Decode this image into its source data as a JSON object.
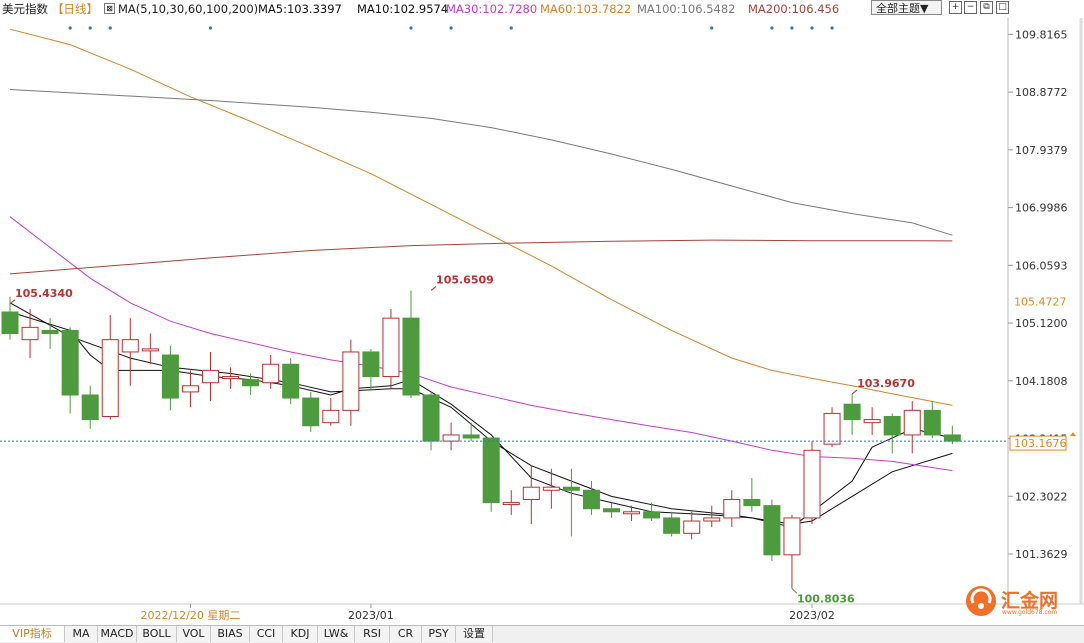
{
  "header": {
    "instrument": "美元指数",
    "period": "【日线】",
    "ma_params": "MA(5,10,30,60,100,200)",
    "ma5": "MA5:103.3397",
    "ma10": "MA10:102.9574",
    "ma30": "MA30:102.7280",
    "ma60": "MA60:103.7822",
    "ma100": "MA100:106.5482",
    "ma200": "MA200:106.456",
    "theme_dropdown": "全部主题▼"
  },
  "colors": {
    "up": "#b83232",
    "down": "#4e9a3e",
    "ma5": "#111111",
    "ma10": "#111111",
    "ma30": "#c83ccc",
    "ma60": "#d9822b",
    "ma100": "#7a7a7a",
    "ma200": "#a5443a",
    "crosshair": "#2a7ab8",
    "price_orange": "#e08a1e"
  },
  "chart_data": {
    "type": "candlestick",
    "ylim": [
      100.55,
      110.05
    ],
    "y_ticks": [
      "109.8165",
      "108.8772",
      "107.9379",
      "106.9986",
      "106.0593",
      "105.1200",
      "104.1808",
      "103.2415",
      "102.3022",
      "101.3629"
    ],
    "x_labels": [
      {
        "label": "2022/12/20 星期二",
        "index": 9
      },
      {
        "label": "2023/01",
        "index": 18
      },
      {
        "label": "2023/02",
        "index": 40
      }
    ],
    "candles": [
      [
        105.3,
        104.95,
        105.55,
        104.85
      ],
      [
        104.85,
        105.05,
        105.35,
        104.55
      ],
      [
        105.0,
        104.95,
        105.2,
        104.7
      ],
      [
        105.0,
        103.95,
        105.05,
        103.65
      ],
      [
        103.95,
        103.55,
        104.1,
        103.4
      ],
      [
        103.6,
        104.85,
        105.25,
        103.55
      ],
      [
        104.65,
        104.85,
        105.2,
        104.1
      ],
      [
        104.7,
        104.7,
        104.95,
        104.45
      ],
      [
        104.6,
        103.9,
        104.75,
        103.7
      ],
      [
        104.0,
        104.1,
        104.35,
        103.75
      ],
      [
        104.15,
        104.35,
        104.65,
        103.85
      ],
      [
        104.25,
        104.25,
        104.4,
        104.05
      ],
      [
        104.2,
        104.1,
        104.3,
        103.95
      ],
      [
        104.15,
        104.45,
        104.6,
        104.05
      ],
      [
        104.45,
        103.9,
        104.55,
        103.8
      ],
      [
        103.9,
        103.45,
        104.0,
        103.35
      ],
      [
        103.5,
        103.7,
        103.9,
        103.45
      ],
      [
        103.7,
        104.65,
        104.85,
        103.45
      ],
      [
        104.65,
        104.25,
        104.7,
        104.05
      ],
      [
        104.25,
        105.2,
        105.35,
        104.05
      ],
      [
        105.2,
        103.95,
        105.65,
        103.9
      ],
      [
        103.95,
        103.2,
        104.0,
        103.05
      ],
      [
        103.2,
        103.3,
        103.5,
        103.05
      ],
      [
        103.3,
        103.25,
        103.5,
        103.2
      ],
      [
        103.25,
        102.2,
        103.25,
        102.05
      ],
      [
        102.2,
        102.2,
        102.4,
        102.0
      ],
      [
        102.25,
        102.45,
        102.8,
        101.85
      ],
      [
        102.4,
        102.45,
        102.75,
        102.1
      ],
      [
        102.45,
        102.4,
        102.75,
        101.65
      ],
      [
        102.4,
        102.1,
        102.55,
        102.0
      ],
      [
        102.1,
        102.05,
        102.2,
        101.95
      ],
      [
        102.05,
        102.05,
        102.15,
        101.9
      ],
      [
        102.05,
        101.95,
        102.2,
        101.9
      ],
      [
        101.95,
        101.7,
        102.05,
        101.65
      ],
      [
        101.7,
        101.9,
        102.05,
        101.6
      ],
      [
        101.9,
        101.95,
        102.15,
        101.8
      ],
      [
        101.95,
        102.25,
        102.4,
        101.8
      ],
      [
        102.25,
        102.15,
        102.6,
        102.05
      ],
      [
        102.15,
        101.35,
        102.25,
        101.25
      ],
      [
        101.35,
        101.95,
        102.0,
        100.8036
      ],
      [
        101.95,
        103.05,
        103.2,
        101.85
      ],
      [
        103.15,
        103.65,
        103.75,
        103.1
      ],
      [
        103.8,
        103.55,
        103.967,
        103.3
      ],
      [
        103.5,
        103.55,
        103.75,
        103.3
      ],
      [
        103.6,
        103.3,
        103.65,
        103.0
      ],
      [
        103.3,
        103.7,
        103.85,
        103.0
      ],
      [
        103.7,
        103.3,
        103.85,
        103.25
      ],
      [
        103.3,
        103.2,
        103.45,
        103.15
      ]
    ],
    "series": [
      {
        "name": "MA5",
        "values": [
          [
            0,
            105.3
          ],
          [
            3,
            105.0
          ],
          [
            4,
            104.6
          ],
          [
            5,
            104.35
          ],
          [
            8,
            104.35
          ],
          [
            10,
            104.25
          ],
          [
            12,
            104.2
          ],
          [
            14,
            104.1
          ],
          [
            16,
            103.95
          ],
          [
            17,
            104.05
          ],
          [
            19,
            104.1
          ],
          [
            20,
            104.2
          ],
          [
            22,
            103.8
          ],
          [
            24,
            103.3
          ],
          [
            26,
            102.6
          ],
          [
            28,
            102.35
          ],
          [
            30,
            102.2
          ],
          [
            32,
            102.05
          ],
          [
            35,
            102.0
          ],
          [
            37,
            101.95
          ],
          [
            39,
            101.8
          ],
          [
            40,
            102.05
          ],
          [
            42,
            102.55
          ],
          [
            43,
            103.1
          ],
          [
            45,
            103.4
          ],
          [
            47,
            103.25
          ]
        ]
      },
      {
        "name": "MA10",
        "values": [
          [
            0,
            105.45
          ],
          [
            3,
            104.9
          ],
          [
            6,
            104.55
          ],
          [
            8,
            104.4
          ],
          [
            11,
            104.3
          ],
          [
            14,
            104.15
          ],
          [
            16,
            104.0
          ],
          [
            19,
            104.05
          ],
          [
            20,
            104.05
          ],
          [
            22,
            103.75
          ],
          [
            24,
            103.2
          ],
          [
            26,
            102.8
          ],
          [
            28,
            102.55
          ],
          [
            30,
            102.3
          ],
          [
            33,
            102.1
          ],
          [
            36,
            102.0
          ],
          [
            39,
            101.85
          ],
          [
            40,
            101.9
          ],
          [
            42,
            102.3
          ],
          [
            44,
            102.7
          ],
          [
            47,
            103.0
          ]
        ]
      },
      {
        "name": "MA30",
        "values": [
          [
            0,
            106.85
          ],
          [
            2,
            106.35
          ],
          [
            4,
            105.85
          ],
          [
            6,
            105.45
          ],
          [
            8,
            105.15
          ],
          [
            10,
            104.95
          ],
          [
            12,
            104.8
          ],
          [
            14,
            104.65
          ],
          [
            16,
            104.52
          ],
          [
            18,
            104.42
          ],
          [
            20,
            104.3
          ],
          [
            22,
            104.08
          ],
          [
            24,
            103.93
          ],
          [
            26,
            103.78
          ],
          [
            28,
            103.66
          ],
          [
            30,
            103.55
          ],
          [
            32,
            103.44
          ],
          [
            34,
            103.34
          ],
          [
            36,
            103.2
          ],
          [
            38,
            103.05
          ],
          [
            40,
            102.95
          ],
          [
            42,
            102.92
          ],
          [
            44,
            102.87
          ],
          [
            47,
            102.72
          ]
        ]
      },
      {
        "name": "MA60",
        "values": [
          [
            0,
            109.9
          ],
          [
            3,
            109.65
          ],
          [
            6,
            109.25
          ],
          [
            9,
            108.8
          ],
          [
            12,
            108.4
          ],
          [
            15,
            107.98
          ],
          [
            18,
            107.55
          ],
          [
            21,
            107.05
          ],
          [
            24,
            106.55
          ],
          [
            27,
            106.05
          ],
          [
            30,
            105.5
          ],
          [
            33,
            105.0
          ],
          [
            36,
            104.55
          ],
          [
            38,
            104.35
          ],
          [
            40,
            104.22
          ],
          [
            42,
            104.1
          ],
          [
            44,
            103.97
          ],
          [
            47,
            103.78
          ]
        ]
      },
      {
        "name": "MA100",
        "values": [
          [
            0,
            108.92
          ],
          [
            5,
            108.83
          ],
          [
            10,
            108.74
          ],
          [
            15,
            108.63
          ],
          [
            18,
            108.55
          ],
          [
            21,
            108.45
          ],
          [
            24,
            108.3
          ],
          [
            27,
            108.1
          ],
          [
            30,
            107.87
          ],
          [
            33,
            107.62
          ],
          [
            36,
            107.35
          ],
          [
            39,
            107.08
          ],
          [
            42,
            106.9
          ],
          [
            45,
            106.75
          ],
          [
            47,
            106.55
          ]
        ]
      },
      {
        "name": "MA200",
        "values": [
          [
            0,
            105.92
          ],
          [
            5,
            106.05
          ],
          [
            10,
            106.18
          ],
          [
            15,
            106.3
          ],
          [
            20,
            106.38
          ],
          [
            25,
            106.42
          ],
          [
            30,
            106.45
          ],
          [
            35,
            106.47
          ],
          [
            40,
            106.46
          ],
          [
            45,
            106.46
          ],
          [
            47,
            106.456
          ]
        ]
      }
    ],
    "annotations": [
      {
        "text": "105.4340",
        "index": 0,
        "value": 105.434,
        "color": "#b83232"
      },
      {
        "text": "105.6509",
        "index": 21,
        "value": 105.6509,
        "color": "#b83232"
      },
      {
        "text": "103.9670",
        "index": 42,
        "value": 103.967,
        "color": "#b83232"
      },
      {
        "text": "100.8036",
        "index": 39,
        "value": 100.8036,
        "color": "#4e9a3e"
      }
    ],
    "price_tags": [
      {
        "text": "105.4727",
        "value": 105.4727
      },
      {
        "text": "103.1676",
        "value": 103.1676
      }
    ],
    "crosshair_value": 103.1676,
    "event_dots": [
      3,
      4,
      5,
      10,
      20,
      22,
      25,
      35,
      38,
      39,
      40,
      41
    ]
  },
  "tabs": [
    "VIP指标",
    "MA",
    "MACD",
    "BOLL",
    "VOL",
    "BIAS",
    "CCI",
    "KDJ",
    "LW&",
    "RSI",
    "CR",
    "PSY",
    "设置"
  ],
  "logo": {
    "name": "汇金网",
    "sub": "www.gold678.com"
  }
}
